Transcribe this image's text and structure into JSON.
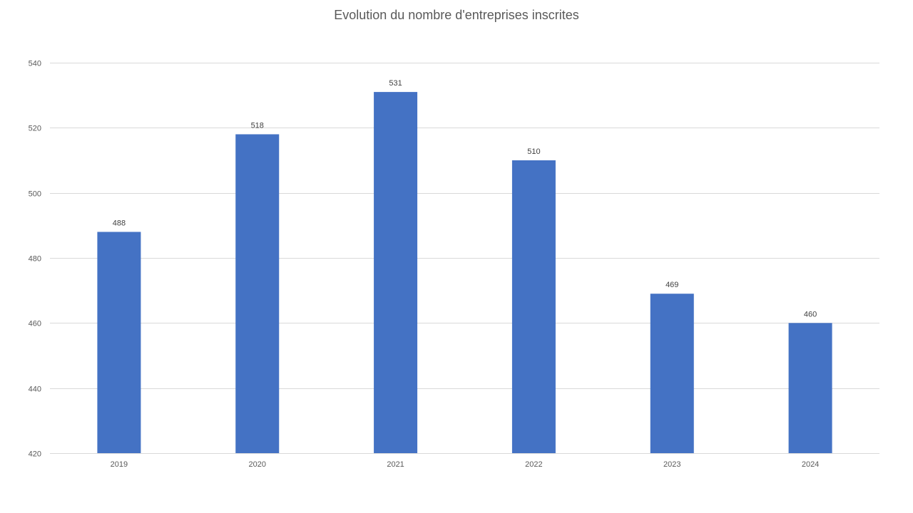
{
  "chart_data": {
    "type": "bar",
    "title": "Evolution du nombre d'entreprises inscrites",
    "categories": [
      "2019",
      "2020",
      "2021",
      "2022",
      "2023",
      "2024"
    ],
    "values": [
      488,
      518,
      531,
      510,
      469,
      460
    ],
    "data_labels": [
      "488",
      "518",
      "531",
      "510",
      "469",
      "460"
    ],
    "ylim": [
      420,
      540
    ],
    "yticks": [
      420,
      440,
      460,
      480,
      500,
      520,
      540
    ],
    "ytick_labels": [
      "420",
      "440",
      "460",
      "480",
      "500",
      "520",
      "540"
    ],
    "grid": true,
    "legend": "none",
    "bar_color": "#4472C4",
    "grid_color": "#D9D9D9"
  }
}
